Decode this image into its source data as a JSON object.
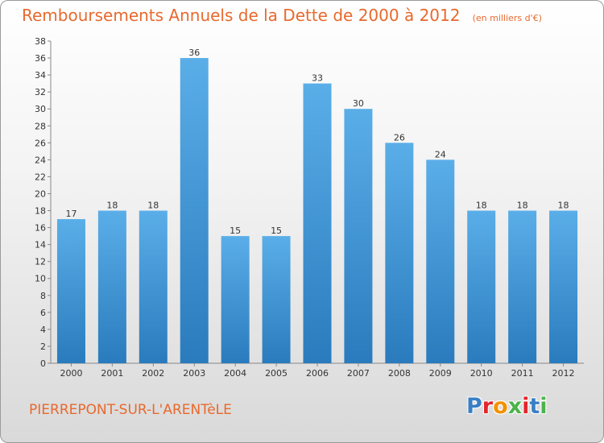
{
  "header": {
    "title": "Remboursements Annuels de la Dette de 2000 à 2012",
    "unit": "(en milliers d'€)"
  },
  "footer": {
    "commune": "PIERREPONT-SUR-L'ARENTèLE",
    "brand": "Proxiti",
    "brand_colors": [
      "#3a7fc4",
      "#e3262b",
      "#f29100",
      "#4cb34a",
      "#e3262b",
      "#3a7fc4",
      "#4cb34a"
    ]
  },
  "colors": {
    "title": "#e8692d",
    "bar_light": "#5aaee8",
    "bar_dark": "#2a7bbd"
  },
  "chart_data": {
    "type": "bar",
    "title": "Remboursements Annuels de la Dette de 2000 à 2012",
    "xlabel": "",
    "ylabel": "",
    "categories": [
      "2000",
      "2001",
      "2002",
      "2003",
      "2004",
      "2005",
      "2006",
      "2007",
      "2008",
      "2009",
      "2010",
      "2011",
      "2012"
    ],
    "values": [
      17,
      18,
      18,
      36,
      15,
      15,
      33,
      30,
      26,
      24,
      18,
      18,
      18
    ],
    "ylim": [
      0,
      38
    ],
    "yticks": [
      0,
      2,
      4,
      6,
      8,
      10,
      12,
      14,
      16,
      18,
      20,
      22,
      24,
      26,
      28,
      30,
      32,
      34,
      36,
      38
    ],
    "grid": false,
    "data_labels": true
  }
}
